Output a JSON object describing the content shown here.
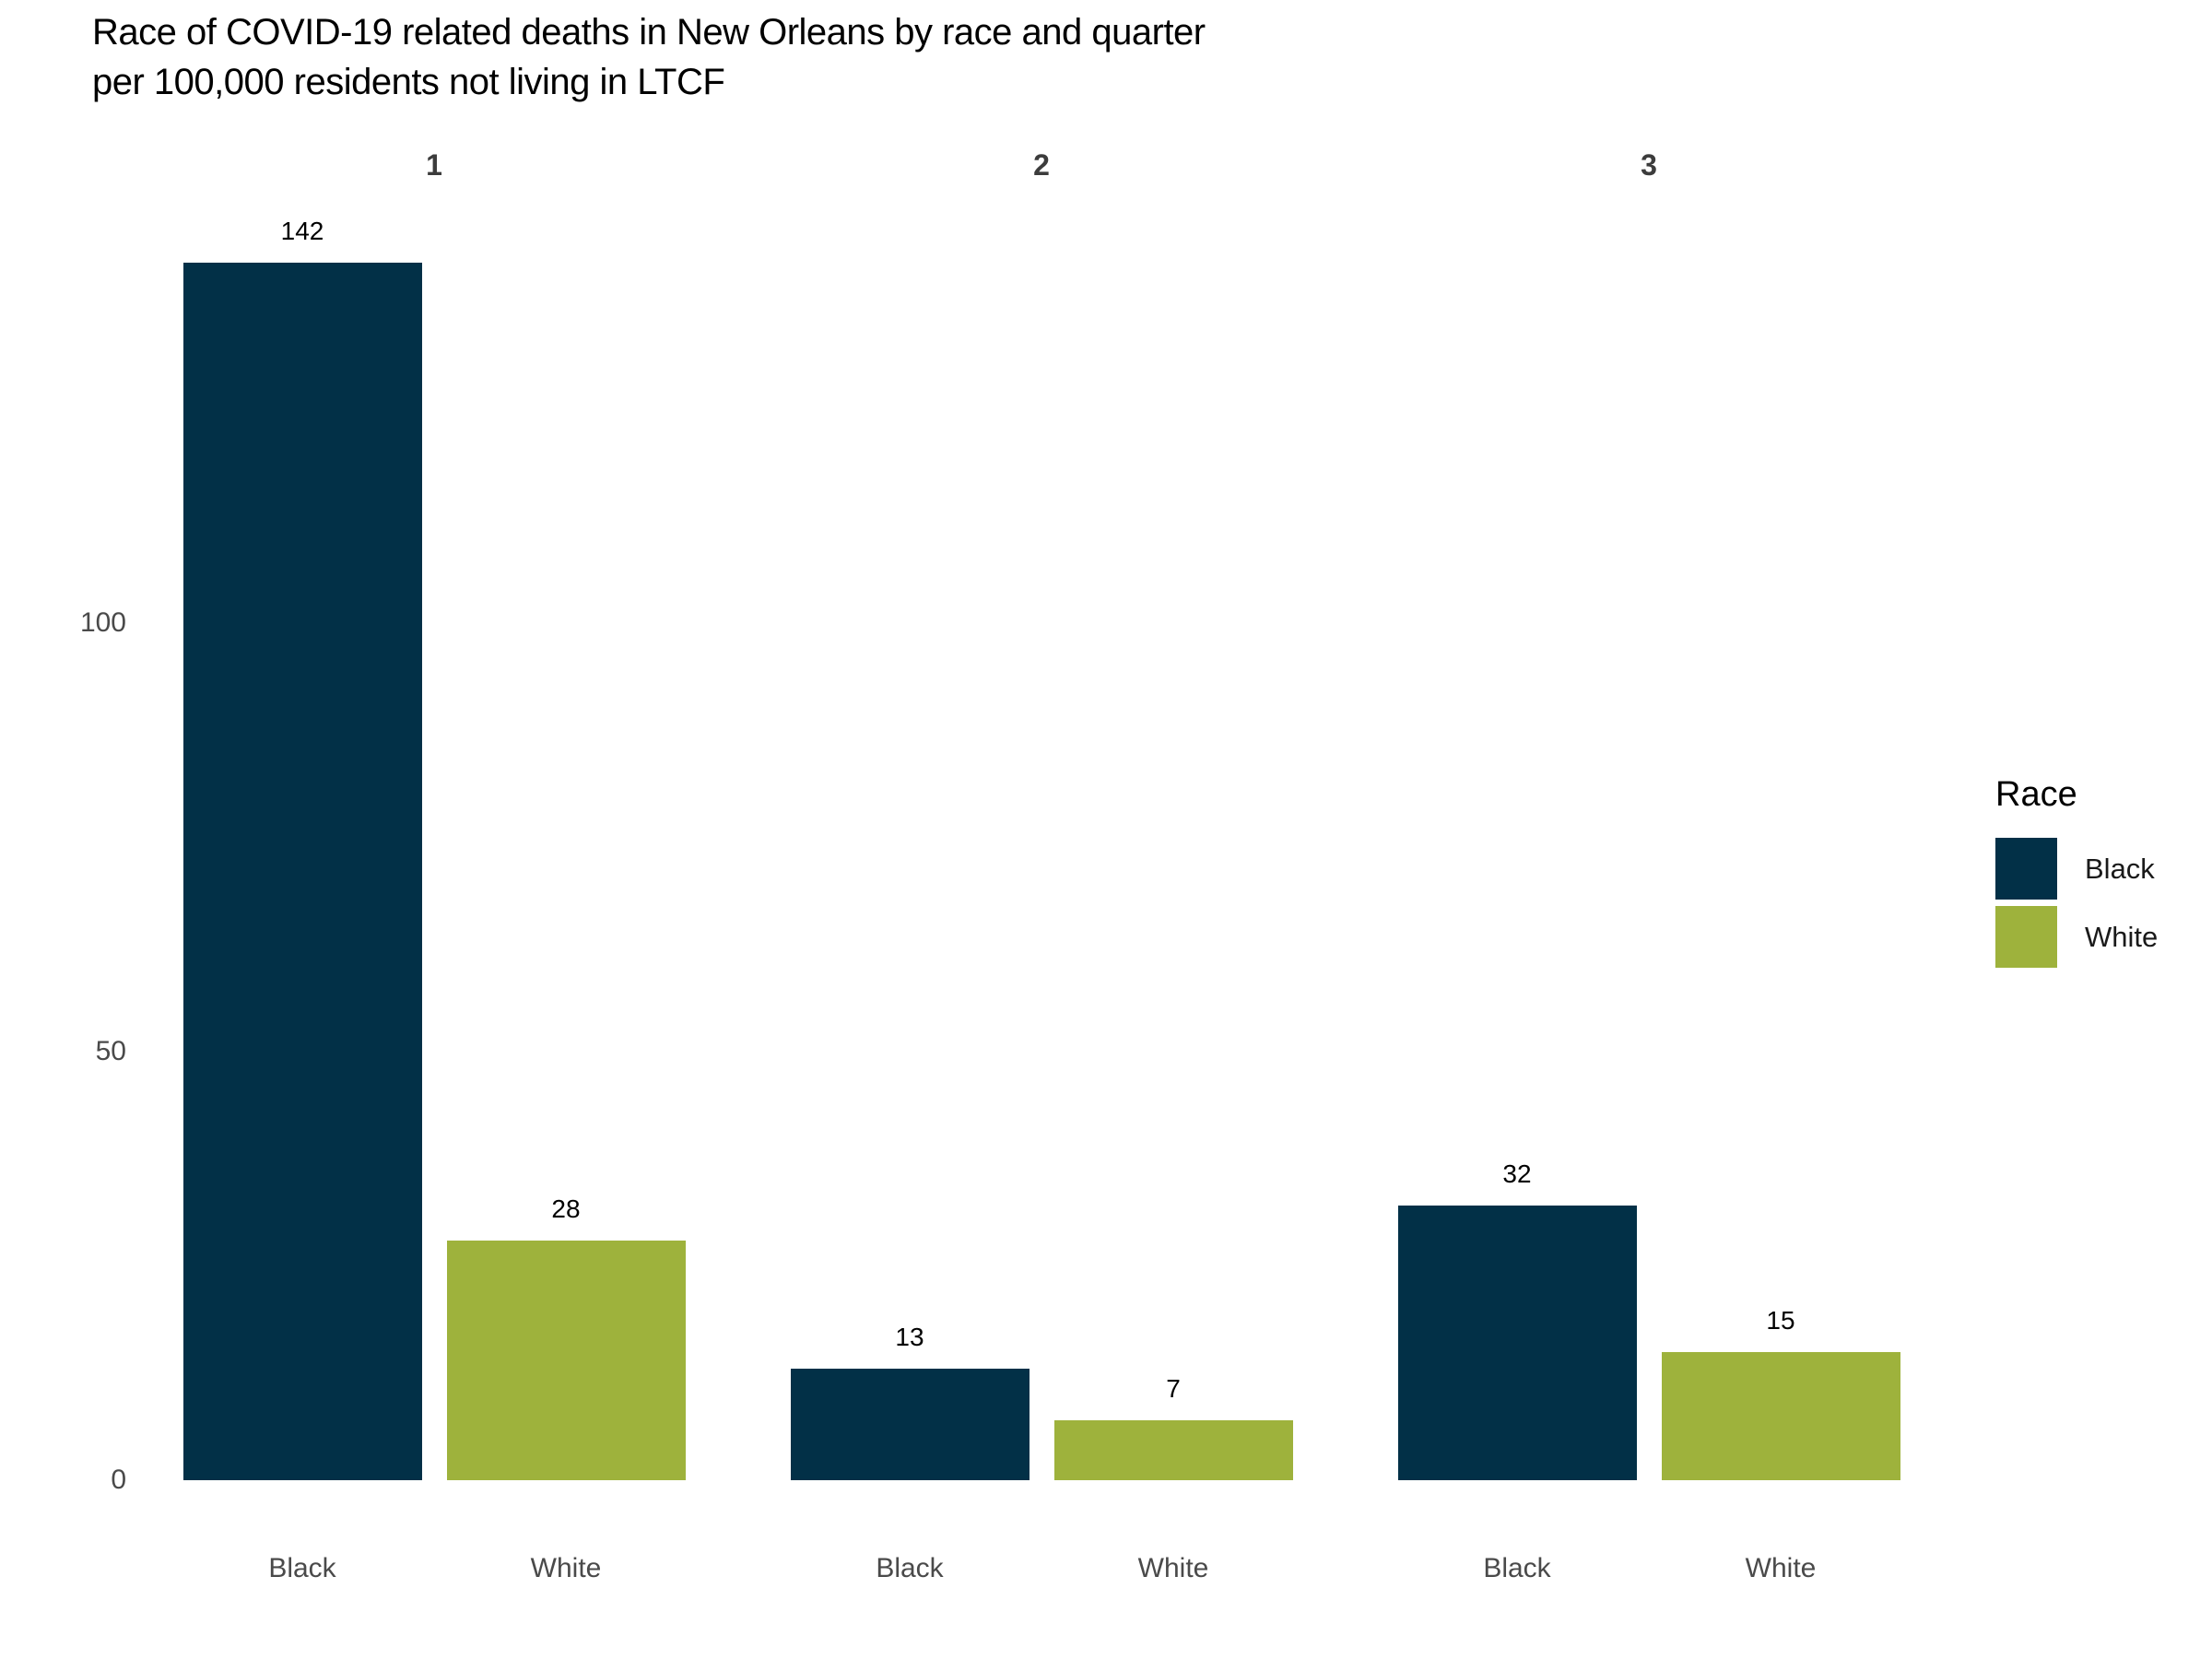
{
  "title": {
    "line1": "Race of COVID-19 related deaths in New Orleans by race and quarter",
    "line2": "per 100,000 residents not living in LTCF"
  },
  "legend": {
    "title": "Race",
    "entries": [
      {
        "label": "Black",
        "color": "#023047"
      },
      {
        "label": "White",
        "color": "#9eb23c"
      }
    ]
  },
  "chart_data": {
    "type": "bar",
    "title": "Race of COVID-19 related deaths in New Orleans by race and quarter per 100,000 residents not living in LTCF",
    "facet_variable": "quarter",
    "facets": [
      {
        "label": "1",
        "categories": [
          "Black",
          "White"
        ],
        "values": [
          142,
          28
        ]
      },
      {
        "label": "2",
        "categories": [
          "Black",
          "White"
        ],
        "values": [
          13,
          7
        ]
      },
      {
        "label": "3",
        "categories": [
          "Black",
          "White"
        ],
        "values": [
          32,
          15
        ]
      }
    ],
    "series": [
      {
        "name": "Black",
        "color": "#023047",
        "values": [
          142,
          13,
          32
        ]
      },
      {
        "name": "White",
        "color": "#9eb23c",
        "values": [
          28,
          7,
          15
        ]
      }
    ],
    "xlabel": "",
    "ylabel": "",
    "y_ticks": [
      0,
      50,
      100
    ],
    "ylim": [
      0,
      152
    ],
    "grid": false,
    "axis_lines": false,
    "bar_value_labels": true,
    "legend_position": "right"
  }
}
